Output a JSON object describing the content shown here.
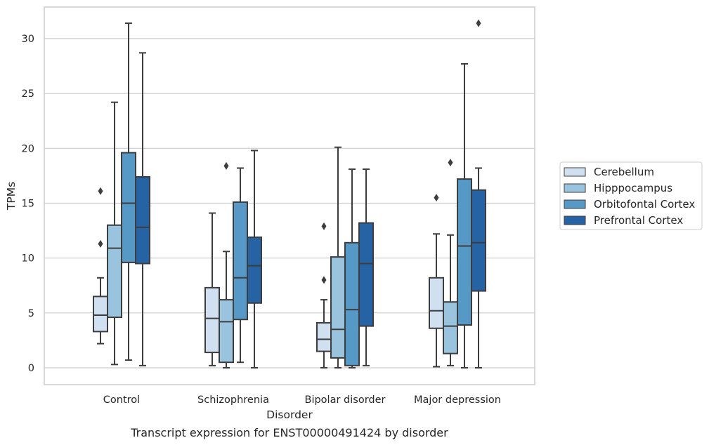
{
  "chart_data": {
    "type": "box",
    "title": "",
    "caption": "Transcript expression for ENST00000491424 by disorder",
    "xlabel": "Disorder",
    "ylabel": "TPMs",
    "ylim": [
      -1.5,
      33
    ],
    "yticks": [
      "0",
      "5",
      "10",
      "15",
      "20",
      "25",
      "30"
    ],
    "grid": "horizontal",
    "legend_position": "right",
    "categories": [
      "Control",
      "Schizophrenia",
      "Bipolar disorder",
      "Major depression"
    ],
    "series": [
      {
        "name": "Cerebellum",
        "color": "#d1e0f1",
        "boxes": [
          {
            "whislo": 2.2,
            "q1": 3.3,
            "med": 4.8,
            "q3": 6.5,
            "whishi": 8.2,
            "fliers": [
              11.3,
              16.1
            ]
          },
          {
            "whislo": 0.2,
            "q1": 1.4,
            "med": 4.5,
            "q3": 7.3,
            "whishi": 14.1,
            "fliers": []
          },
          {
            "whislo": 0.0,
            "q1": 1.5,
            "med": 2.6,
            "q3": 4.1,
            "whishi": 6.2,
            "fliers": [
              8.0,
              12.9
            ]
          },
          {
            "whislo": 0.1,
            "q1": 3.6,
            "med": 5.2,
            "q3": 8.2,
            "whishi": 12.2,
            "fliers": [
              15.5
            ]
          }
        ]
      },
      {
        "name": "Hipppocampus",
        "color": "#9ac3de",
        "boxes": [
          {
            "whislo": 0.3,
            "q1": 4.6,
            "med": 10.9,
            "q3": 13.0,
            "whishi": 24.2,
            "fliers": []
          },
          {
            "whislo": 0.0,
            "q1": 0.5,
            "med": 4.2,
            "q3": 6.2,
            "whishi": 10.6,
            "fliers": [
              18.4
            ]
          },
          {
            "whislo": 0.0,
            "q1": 0.9,
            "med": 3.5,
            "q3": 10.1,
            "whishi": 20.1,
            "fliers": []
          },
          {
            "whislo": 0.2,
            "q1": 1.3,
            "med": 3.8,
            "q3": 6.0,
            "whishi": 12.1,
            "fliers": [
              18.7
            ]
          }
        ]
      },
      {
        "name": "Orbitofontal Cortex",
        "color": "#5698c6",
        "boxes": [
          {
            "whislo": 0.7,
            "q1": 9.6,
            "med": 15.0,
            "q3": 19.6,
            "whishi": 31.4,
            "fliers": []
          },
          {
            "whislo": 0.5,
            "q1": 4.4,
            "med": 8.2,
            "q3": 15.1,
            "whishi": 18.2,
            "fliers": []
          },
          {
            "whislo": 0.0,
            "q1": 0.2,
            "med": 5.3,
            "q3": 11.4,
            "whishi": 18.1,
            "fliers": []
          },
          {
            "whislo": 0.0,
            "q1": 3.9,
            "med": 11.1,
            "q3": 17.2,
            "whishi": 27.7,
            "fliers": []
          }
        ]
      },
      {
        "name": "Prefrontal Cortex",
        "color": "#2563a5",
        "boxes": [
          {
            "whislo": 0.2,
            "q1": 9.5,
            "med": 12.8,
            "q3": 17.4,
            "whishi": 28.7,
            "fliers": []
          },
          {
            "whislo": 0.0,
            "q1": 5.9,
            "med": 9.3,
            "q3": 11.9,
            "whishi": 19.8,
            "fliers": []
          },
          {
            "whislo": 0.2,
            "q1": 3.8,
            "med": 9.5,
            "q3": 13.2,
            "whishi": 18.1,
            "fliers": []
          },
          {
            "whislo": 0.0,
            "q1": 7.0,
            "med": 11.4,
            "q3": 16.2,
            "whishi": 18.2,
            "fliers": [
              31.4
            ]
          }
        ]
      }
    ]
  }
}
